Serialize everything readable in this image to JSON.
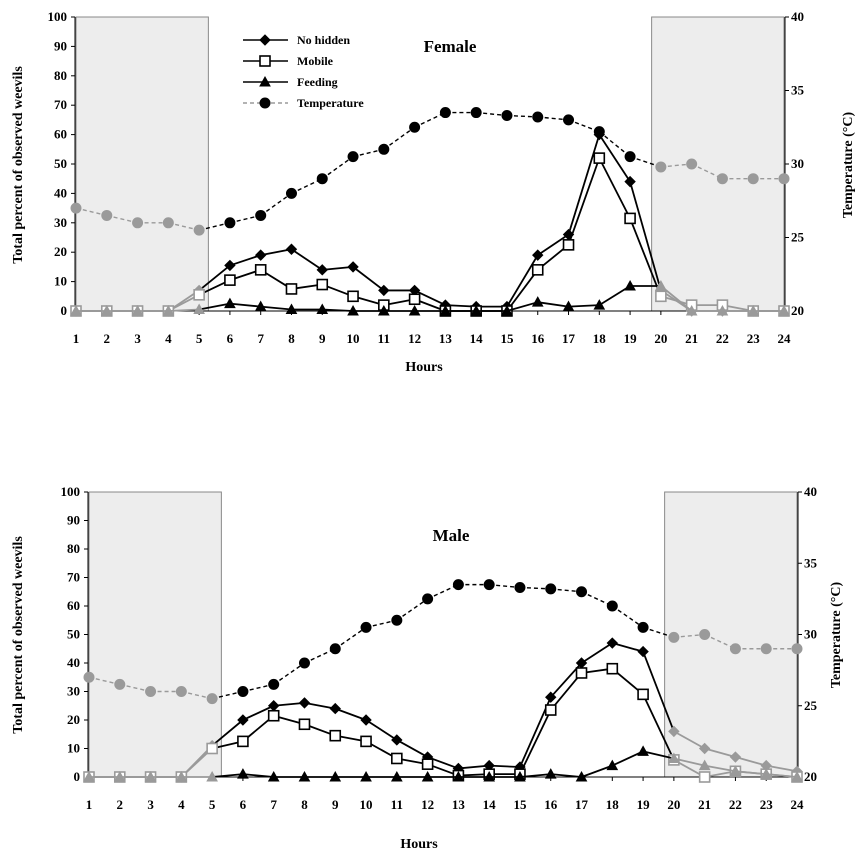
{
  "chart_data": [
    {
      "type": "line",
      "title": "Female",
      "xlabel": "Hours",
      "ylabel": "Total percent of observed  weevils",
      "y2label": "Temperature (°C)",
      "x": [
        1,
        2,
        3,
        4,
        5,
        6,
        7,
        8,
        9,
        10,
        11,
        12,
        13,
        14,
        15,
        16,
        17,
        18,
        19,
        20,
        21,
        22,
        23,
        24
      ],
      "ylim": [
        0,
        100
      ],
      "yticks": [
        0,
        10,
        20,
        30,
        40,
        50,
        60,
        70,
        80,
        90,
        100
      ],
      "y2lim": [
        20,
        40
      ],
      "y2ticks": [
        20,
        25,
        30,
        35,
        40
      ],
      "dark_periods": [
        [
          1,
          5.3
        ],
        [
          19.7,
          24
        ]
      ],
      "grid": false,
      "legend_position": "top-left",
      "series": [
        {
          "name": "No hidden",
          "axis": "left",
          "marker": "diamond",
          "color": "#000000",
          "values": [
            0,
            0,
            0,
            0,
            7,
            15.5,
            19,
            21,
            14,
            15,
            7,
            7,
            2,
            1.5,
            1.5,
            19,
            26,
            60,
            44,
            7,
            0,
            0,
            0,
            0
          ]
        },
        {
          "name": "Mobile",
          "axis": "left",
          "marker": "square-open",
          "color": "#000000",
          "values": [
            0,
            0,
            0,
            0,
            5.5,
            10.5,
            14,
            7.5,
            9,
            5,
            2,
            4,
            0,
            0,
            0,
            14,
            22.5,
            52,
            31.5,
            5,
            2,
            2,
            0,
            0
          ]
        },
        {
          "name": "Feeding",
          "axis": "left",
          "marker": "triangle",
          "color": "#000000",
          "values": [
            0,
            0,
            0,
            0,
            0.5,
            2.5,
            1.5,
            0.5,
            0.5,
            0,
            0,
            0,
            0,
            0,
            0,
            3,
            1.5,
            2,
            8.5,
            8.5,
            0,
            0,
            0,
            0
          ]
        },
        {
          "name": "Temperature",
          "axis": "right",
          "marker": "circle",
          "color": "#000000",
          "dashed": true,
          "values": [
            27,
            26.5,
            26,
            26,
            25.5,
            26,
            26.5,
            28,
            29,
            30.5,
            31,
            32.5,
            33.5,
            33.5,
            33.3,
            33.2,
            33,
            32.2,
            30.5,
            29.8,
            30,
            29,
            29,
            29
          ]
        }
      ]
    },
    {
      "type": "line",
      "title": "Male",
      "xlabel": "Hours",
      "ylabel": "Total percent of observed  weevils",
      "y2label": "Temperature (°C)",
      "x": [
        1,
        2,
        3,
        4,
        5,
        6,
        7,
        8,
        9,
        10,
        11,
        12,
        13,
        14,
        15,
        16,
        17,
        18,
        19,
        20,
        21,
        22,
        23,
        24
      ],
      "ylim": [
        0,
        100
      ],
      "yticks": [
        0,
        10,
        20,
        30,
        40,
        50,
        60,
        70,
        80,
        90,
        100
      ],
      "y2lim": [
        20,
        40
      ],
      "y2ticks": [
        20,
        25,
        30,
        35,
        40
      ],
      "dark_periods": [
        [
          1,
          5.3
        ],
        [
          19.7,
          24
        ]
      ],
      "grid": false,
      "legend_position": "none",
      "series": [
        {
          "name": "No hidden",
          "axis": "left",
          "marker": "diamond",
          "color": "#000000",
          "values": [
            0,
            0,
            0,
            0,
            11,
            20,
            25,
            26,
            24,
            20,
            13,
            7,
            3,
            4,
            3.5,
            28,
            40,
            47,
            44,
            16,
            10,
            7,
            4,
            2
          ]
        },
        {
          "name": "Mobile",
          "axis": "left",
          "marker": "square-open",
          "color": "#000000",
          "values": [
            0,
            0,
            0,
            0,
            10,
            12.5,
            21.5,
            18.5,
            14.5,
            12.5,
            6.5,
            4.5,
            0.5,
            1,
            1,
            23.5,
            36.5,
            38,
            29,
            6,
            0,
            2,
            1,
            0
          ]
        },
        {
          "name": "Feeding",
          "axis": "left",
          "marker": "triangle",
          "color": "#000000",
          "values": [
            0,
            0,
            0,
            0,
            0,
            1,
            0,
            0,
            0,
            0,
            0,
            0,
            0,
            0,
            0,
            1,
            0,
            4,
            9,
            6.5,
            4,
            2,
            1,
            0
          ]
        },
        {
          "name": "Temperature",
          "axis": "right",
          "marker": "circle",
          "color": "#000000",
          "dashed": true,
          "values": [
            27,
            26.5,
            26,
            26,
            25.5,
            26,
            26.5,
            28,
            29,
            30.5,
            31,
            32.5,
            33.5,
            33.5,
            33.3,
            33.2,
            33,
            32,
            30.5,
            29.8,
            30,
            29,
            29,
            29
          ]
        }
      ]
    }
  ],
  "colors": {
    "dark_period_fill": "#ededed",
    "night_series": "#9a9a9a",
    "day_series": "#000000"
  }
}
